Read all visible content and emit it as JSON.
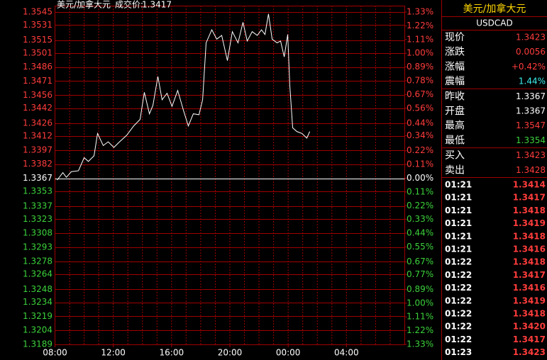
{
  "chart_data": {
    "type": "line",
    "title": "美元/加拿大元",
    "price_label": "成交价:",
    "price": 1.3417,
    "x": [
      8.15,
      8.54,
      8.78,
      9.12,
      9.61,
      10.0,
      10.29,
      10.68,
      10.92,
      11.31,
      11.65,
      12.04,
      12.43,
      12.92,
      13.4,
      13.84,
      14.13,
      14.48,
      14.72,
      15.06,
      15.35,
      15.69,
      16.03,
      16.42,
      16.81,
      17.15,
      17.49,
      17.88,
      18.13,
      18.37,
      18.76,
      19.1,
      19.44,
      19.83,
      20.17,
      20.56,
      20.9,
      21.19,
      21.53,
      21.88,
      22.17,
      22.41,
      22.65,
      22.9,
      23.24,
      23.48,
      23.73,
      23.97,
      24.11,
      24.31,
      24.6,
      24.94,
      25.28,
      25.48
    ],
    "series": [
      {
        "color": "#ffffff",
        "values": [
          1.3365,
          1.3373,
          1.3368,
          1.3374,
          1.3375,
          1.3389,
          1.3385,
          1.3391,
          1.3415,
          1.3402,
          1.3406,
          1.34,
          1.3406,
          1.3413,
          1.3423,
          1.343,
          1.3459,
          1.3436,
          1.3445,
          1.3476,
          1.3451,
          1.3458,
          1.3444,
          1.3461,
          1.344,
          1.3423,
          1.3436,
          1.3435,
          1.3451,
          1.3512,
          1.3526,
          1.3516,
          1.352,
          1.3493,
          1.3524,
          1.3512,
          1.3534,
          1.3514,
          1.3524,
          1.352,
          1.3526,
          1.3521,
          1.3543,
          1.3516,
          1.3512,
          1.3514,
          1.3497,
          1.3521,
          1.3467,
          1.3421,
          1.3417,
          1.3415,
          1.341,
          1.3417
        ]
      }
    ],
    "xlim": [
      8,
      32
    ],
    "xticks": [
      {
        "value": 8,
        "label": "08:00"
      },
      {
        "value": 12,
        "label": "12:00"
      },
      {
        "value": 16,
        "label": "16:00"
      },
      {
        "value": 20,
        "label": "20:00"
      },
      {
        "value": 24,
        "label": "00:00"
      },
      {
        "value": 28,
        "label": "04:00"
      }
    ],
    "ylim": [
      1.3189,
      1.3545
    ],
    "yticks": [
      1.3545,
      1.3531,
      1.3515,
      1.3501,
      1.3486,
      1.3471,
      1.3456,
      1.3442,
      1.3426,
      1.3412,
      1.3397,
      1.3382,
      1.3367,
      1.3353,
      1.3337,
      1.3323,
      1.3308,
      1.3293,
      1.3278,
      1.3264,
      1.3248,
      1.3234,
      1.3219,
      1.3204,
      1.3189
    ],
    "y2lim": [
      -1.33,
      1.33
    ],
    "y2ticks": [
      {
        "value": 1.33,
        "label": "1.33%"
      },
      {
        "value": 1.22,
        "label": "1.22%"
      },
      {
        "value": 1.11,
        "label": "1.11%"
      },
      {
        "value": 1,
        "label": "1.00%"
      },
      {
        "value": 0.89,
        "label": "0.89%"
      },
      {
        "value": 0.78,
        "label": "0.78%"
      },
      {
        "value": 0.67,
        "label": "0.67%"
      },
      {
        "value": 0.56,
        "label": "0.56%"
      },
      {
        "value": 0.44,
        "label": "0.44%"
      },
      {
        "value": 0.34,
        "label": "0.34%"
      },
      {
        "value": 0.22,
        "label": "0.22%"
      },
      {
        "value": 0.11,
        "label": "0.11%"
      },
      {
        "value": 0,
        "label": "0.00%"
      },
      {
        "value": -0.11,
        "label": "0.11%"
      },
      {
        "value": -0.22,
        "label": "0.22%"
      },
      {
        "value": -0.33,
        "label": "0.33%"
      },
      {
        "value": -0.44,
        "label": "0.44%"
      },
      {
        "value": -0.55,
        "label": "0.55%"
      },
      {
        "value": -0.67,
        "label": "0.67%"
      },
      {
        "value": -0.77,
        "label": "0.77%"
      },
      {
        "value": -0.89,
        "label": "0.89%"
      },
      {
        "value": -1,
        "label": "1.00%"
      },
      {
        "value": -1.11,
        "label": "1.11%"
      },
      {
        "value": -1.22,
        "label": "1.22%"
      },
      {
        "value": -1.33,
        "label": "1.33%"
      }
    ],
    "grid": true,
    "up_color": "#ff3c3c",
    "down_color": "#3cd23c",
    "flat_color": "#ffffff",
    "grid_color": "#a00000"
  },
  "quote": {
    "title": "美元/加拿大元",
    "code": "USDCAD",
    "rows": [
      {
        "label": "现价",
        "value": "1.3423",
        "color": "#ff3c3c"
      },
      {
        "label": "涨跌",
        "value": "0.0056",
        "color": "#ff3c3c"
      },
      {
        "label": "涨幅",
        "value": "+0.42%",
        "color": "#ff3c3c"
      },
      {
        "label": "震幅",
        "value": "1.44%",
        "color": "#3cf0f0"
      },
      {
        "label": "昨收",
        "value": "1.3367",
        "color": "#ffffff"
      },
      {
        "label": "开盘",
        "value": "1.3367",
        "color": "#ffffff"
      },
      {
        "label": "最高",
        "value": "1.3547",
        "color": "#ff3c3c"
      },
      {
        "label": "最低",
        "value": "1.3354",
        "color": "#3cd23c"
      },
      {
        "label": "买入",
        "value": "1.3423",
        "color": "#ff3c3c"
      },
      {
        "label": "卖出",
        "value": "1.3428",
        "color": "#ff3c3c"
      }
    ],
    "ticks": [
      {
        "time": "01:21",
        "price": "1.3414"
      },
      {
        "time": "01:21",
        "price": "1.3417"
      },
      {
        "time": "01:21",
        "price": "1.3418"
      },
      {
        "time": "01:21",
        "price": "1.3419"
      },
      {
        "time": "01:21",
        "price": "1.3418"
      },
      {
        "time": "01:21",
        "price": "1.3416"
      },
      {
        "time": "01:22",
        "price": "1.3418"
      },
      {
        "time": "01:22",
        "price": "1.3417"
      },
      {
        "time": "01:22",
        "price": "1.3416"
      },
      {
        "time": "01:22",
        "price": "1.3419"
      },
      {
        "time": "01:22",
        "price": "1.3418"
      },
      {
        "time": "01:22",
        "price": "1.3420"
      },
      {
        "time": "01:22",
        "price": "1.3417"
      },
      {
        "time": "01:23",
        "price": "1.3423"
      }
    ],
    "tick_time_color": "#ffffff",
    "tick_price_color": "#ff3c3c",
    "title_color": "#ffd700"
  }
}
